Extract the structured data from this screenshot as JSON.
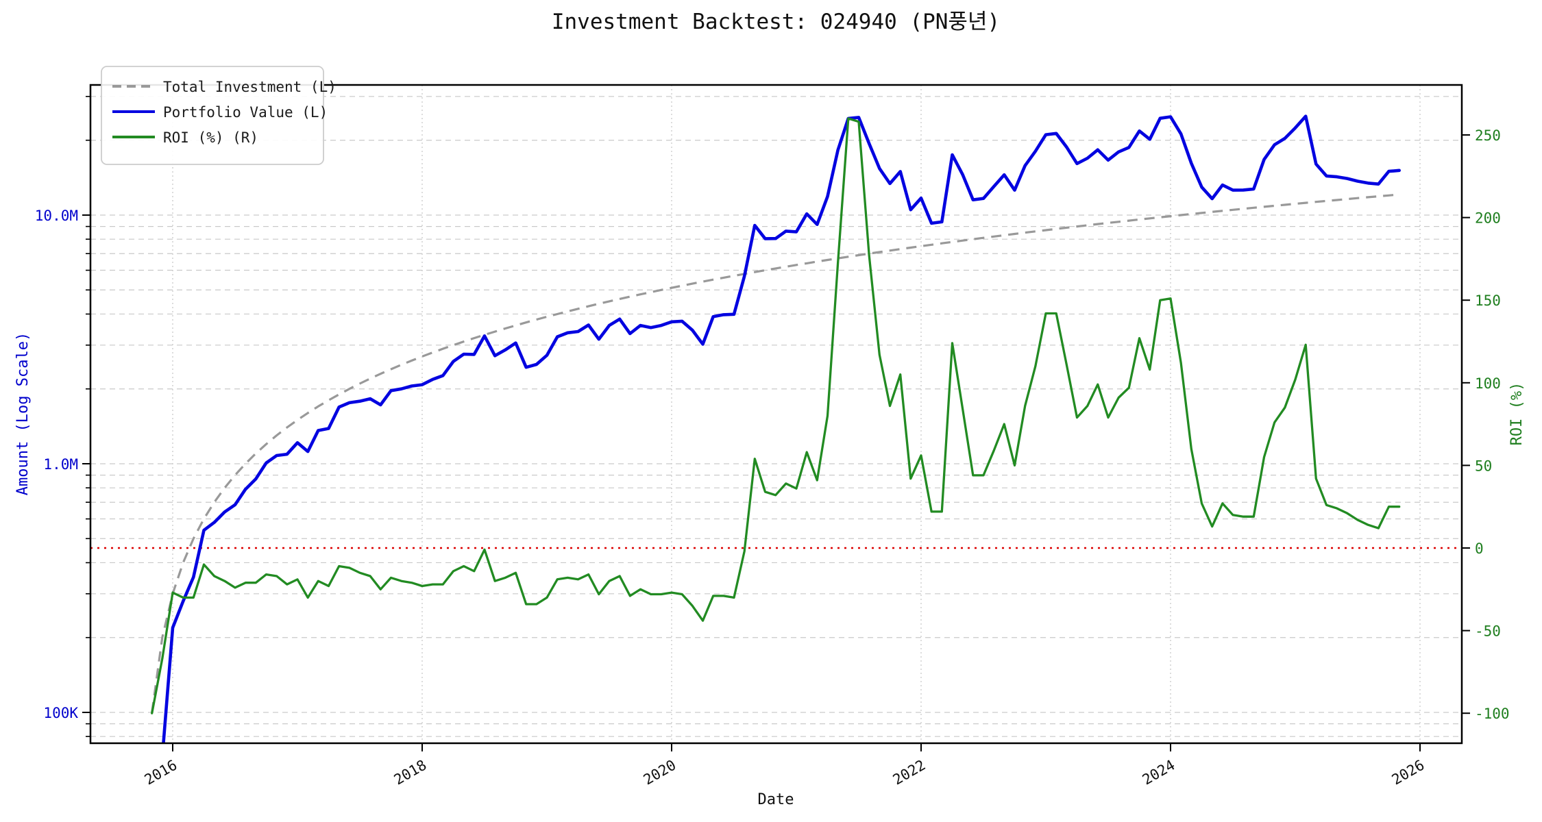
{
  "chart_data": {
    "type": "line",
    "title": "Investment Backtest: 024940 (PN풍년)",
    "xlabel": "Date",
    "ylabel_left": "Amount (Log Scale)",
    "ylabel_right": "ROI (%)",
    "x_tick_years": [
      2016,
      2018,
      2020,
      2022,
      2024,
      2026
    ],
    "x_tick_labels": [
      "2016",
      "2018",
      "2020",
      "2022",
      "2024",
      "2026"
    ],
    "y_left_tick_values": [
      100000,
      1000000,
      10000000
    ],
    "y_left_tick_labels": [
      "100K",
      "1.0M",
      "10.0M"
    ],
    "y_right_tick_values": [
      -100,
      -50,
      0,
      50,
      100,
      150,
      200,
      250
    ],
    "y_right_tick_labels": [
      "-100",
      "-50",
      "0",
      "50",
      "100",
      "150",
      "200",
      "250"
    ],
    "x_range_years": [
      2015.34,
      2026.33
    ],
    "y_left_log_range": [
      75000,
      33400000
    ],
    "y_right_range": [
      -118,
      281
    ],
    "grid": true,
    "legend_position": "upper-left",
    "zero_roi_line": 0,
    "start_month": "2015-11",
    "months": 121,
    "monthly_contribution": 100000,
    "series": [
      {
        "name": "Total Investment (L)",
        "axis": "left",
        "style": "dashed",
        "color": "#999999"
      },
      {
        "name": "Portfolio Value (L)",
        "axis": "left",
        "style": "solid",
        "color": "#0404e0"
      },
      {
        "name": "ROI (%) (R)",
        "axis": "right",
        "style": "solid",
        "color": "#228b22"
      }
    ],
    "roi_percent": [
      -100,
      -67,
      -27,
      -30,
      -30,
      -10,
      -17,
      -20,
      -24,
      -21,
      -21,
      -16,
      -17,
      -22,
      -19,
      -30,
      -20,
      -23,
      -11,
      -12,
      -15,
      -17,
      -25,
      -18,
      -20,
      -21,
      -23,
      -22,
      -22,
      -14,
      -11,
      -14,
      -1,
      -20,
      -18,
      -15,
      -34,
      -34,
      -30,
      -19,
      -18,
      -19,
      -16,
      -28,
      -20,
      -17,
      -29,
      -25,
      -28,
      -28,
      -27,
      -28,
      -35,
      -44,
      -29,
      -29,
      -30,
      -2,
      54,
      34,
      32,
      39,
      36,
      58,
      41,
      80,
      173,
      260,
      258,
      177,
      117,
      86,
      105,
      42,
      56,
      22,
      22,
      124,
      84,
      44,
      44,
      59,
      75,
      50,
      86,
      110,
      142,
      142,
      111,
      79,
      86,
      99,
      79,
      91,
      97,
      127,
      108,
      150,
      151,
      112,
      60,
      27,
      13,
      27,
      20,
      19,
      19,
      55,
      76,
      85,
      102,
      123,
      42,
      26,
      24,
      21,
      17,
      14,
      12,
      25,
      25
    ]
  },
  "legend": {
    "items": [
      {
        "label": "Total Investment (L)",
        "color": "#999999",
        "dashed": true
      },
      {
        "label": "Portfolio Value (L)",
        "color": "#0404e0",
        "dashed": false
      },
      {
        "label": "ROI (%) (R)",
        "color": "#228b22",
        "dashed": false
      }
    ]
  },
  "colors": {
    "investment_line": "#999999",
    "portfolio_line": "#0404e0",
    "roi_line": "#228b22",
    "zero_line": "#dd0000",
    "grid_line": "#c9c9c9",
    "spine": "#000000",
    "left_axis_text": "#0000cc",
    "right_axis_text": "#1e7e1e",
    "text": "#111111"
  }
}
